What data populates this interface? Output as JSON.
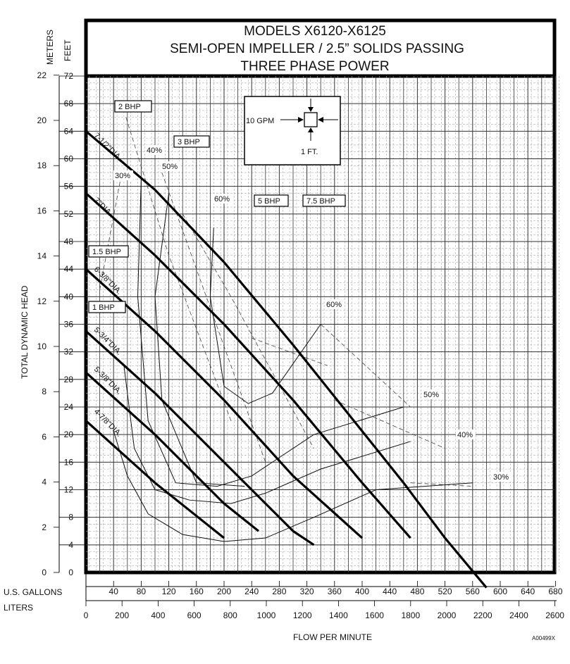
{
  "chart_data": {
    "type": "line",
    "title": [
      "MODELS X6120-X6125",
      "SEMI-OPEN IMPELLER / 2.5” SOLIDS PASSING",
      "THREE PHASE POWER"
    ],
    "x_label": "FLOW PER MINUTE",
    "y_label": "TOTAL DYNAMIC HEAD",
    "code": "A00499X",
    "units": {
      "feet": "FEET",
      "meters": "METERS",
      "gallons": "U.S. GALLONS",
      "liters": "LITERS"
    },
    "x_range_gpm": [
      0,
      690
    ],
    "y_range_ft": [
      0,
      72
    ],
    "grid": true,
    "feet_ticks": [
      "4",
      "8",
      "12",
      "16",
      "20",
      "24",
      "28",
      "32",
      "36",
      "40",
      "44",
      "48",
      "52",
      "56",
      "60",
      "64",
      "68",
      "72"
    ],
    "meter_ticks": [
      "0",
      "2",
      "4",
      "6",
      "8",
      "10",
      "12",
      "14",
      "16",
      "18",
      "20",
      "22"
    ],
    "gallon_ticks": [
      "40",
      "80",
      "120",
      "160",
      "200",
      "240",
      "280",
      "320",
      "360",
      "400",
      "440",
      "480",
      "520",
      "560",
      "600",
      "640",
      "680"
    ],
    "liter_ticks": [
      "0",
      "200",
      "400",
      "600",
      "800",
      "1000",
      "1200",
      "1400",
      "1600",
      "1800",
      "2000",
      "2200",
      "2400",
      "2600"
    ],
    "series": [
      {
        "name": "7-1/2\"DIA.",
        "points": [
          [
            0,
            64
          ],
          [
            100,
            55.5
          ],
          [
            200,
            45
          ],
          [
            300,
            33
          ],
          [
            360,
            25.5
          ],
          [
            460,
            13
          ],
          [
            520,
            5
          ],
          [
            580,
            -2.2
          ]
        ]
      },
      {
        "name": "7\"DIA.",
        "points": [
          [
            0,
            55
          ],
          [
            100,
            46
          ],
          [
            200,
            36
          ],
          [
            300,
            25
          ],
          [
            400,
            13
          ],
          [
            470,
            5
          ]
        ]
      },
      {
        "name": "6-3/8\"DIA.",
        "points": [
          [
            0,
            44
          ],
          [
            100,
            35
          ],
          [
            200,
            25
          ],
          [
            300,
            14
          ],
          [
            400,
            5
          ]
        ]
      },
      {
        "name": "5-3/4\"DIA.",
        "points": [
          [
            0,
            35
          ],
          [
            100,
            26
          ],
          [
            200,
            16
          ],
          [
            300,
            6
          ],
          [
            330,
            4
          ]
        ]
      },
      {
        "name": "5-3/8\"DIA.",
        "points": [
          [
            0,
            29
          ],
          [
            100,
            20
          ],
          [
            200,
            10
          ],
          [
            250,
            6
          ]
        ]
      },
      {
        "name": "4-7/8\"DIA.",
        "points": [
          [
            0,
            22
          ],
          [
            100,
            13
          ],
          [
            200,
            5
          ]
        ]
      }
    ],
    "efficiency_labels": [
      "30%",
      "40%",
      "50%",
      "60%",
      "60%",
      "50%",
      "40%",
      "30%"
    ],
    "bhp_labels": [
      "2 BHP",
      "3 BHP",
      "1.5 BHP",
      "1 BHP",
      "5 BHP",
      "7.5 BHP"
    ],
    "scale_box": {
      "flow": "10 GPM",
      "head": "1 FT."
    }
  }
}
